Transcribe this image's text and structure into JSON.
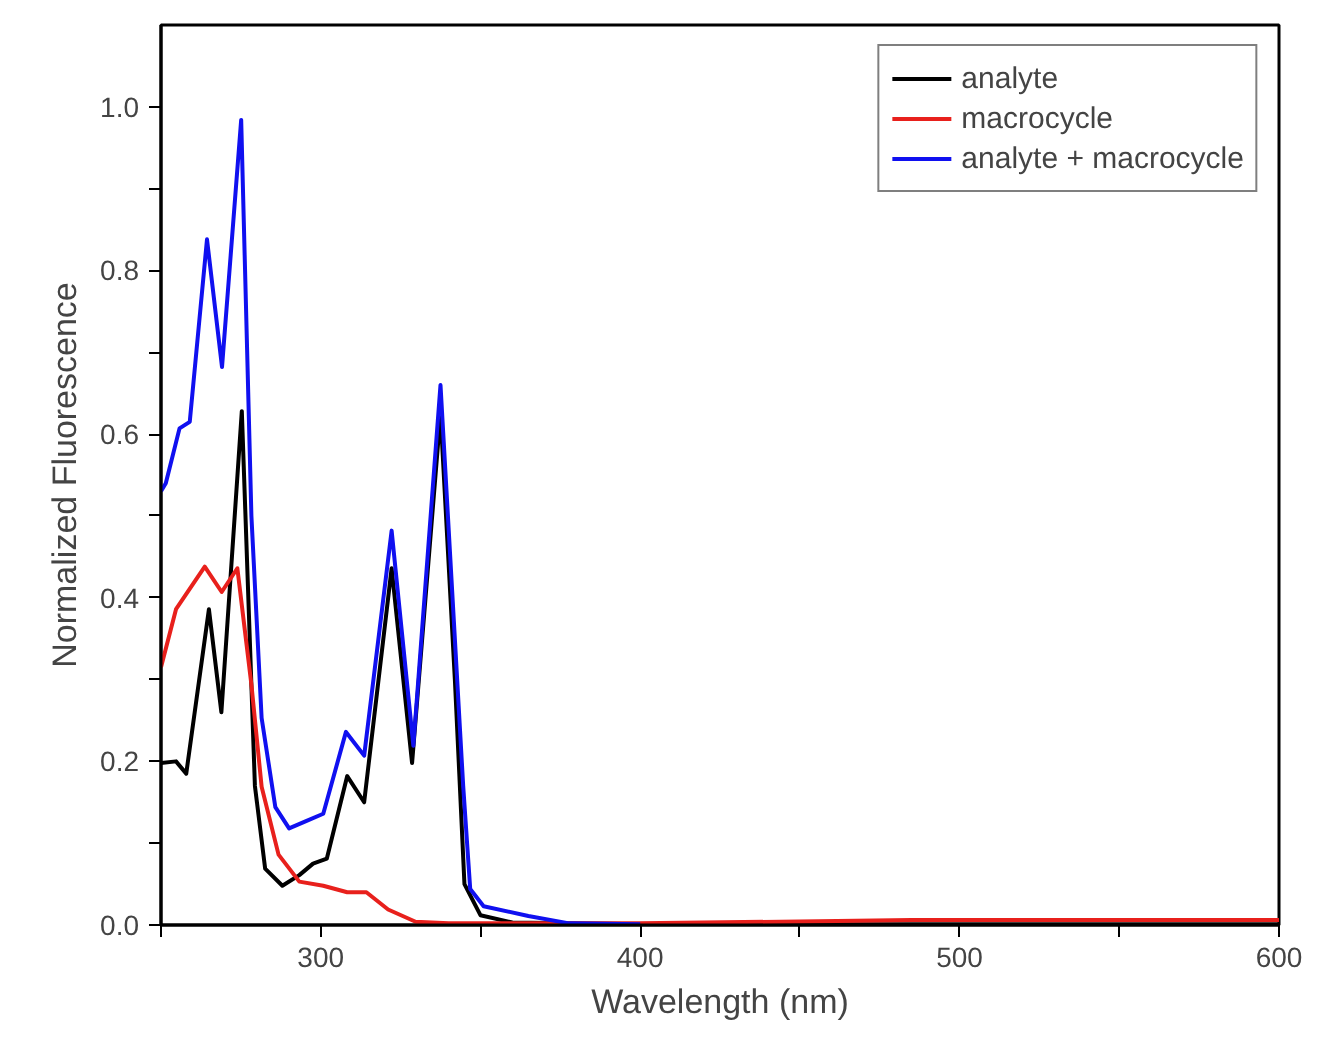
{
  "chart_data": {
    "type": "line",
    "xlabel": "Wavelength (nm)",
    "ylabel": "Normalized Fluorescence",
    "xlim": [
      250,
      600
    ],
    "ylim": [
      0,
      1.1
    ],
    "xticks": [
      {
        "value": 250,
        "label": null
      },
      300,
      {
        "value": 350,
        "label": null
      },
      400,
      {
        "value": 450,
        "label": null
      },
      500,
      {
        "value": 550,
        "label": null
      },
      600
    ],
    "yticks": [
      "0.0",
      {
        "value": 0.1,
        "label": null
      },
      0.2,
      {
        "value": 0.3,
        "label": null
      },
      0.4,
      {
        "value": 0.5,
        "label": null
      },
      0.6,
      {
        "value": 0.7,
        "label": null
      },
      0.8,
      {
        "value": 0.9,
        "label": null
      },
      "1.0"
    ],
    "grid": false,
    "legend": "top right",
    "line_style": "solid",
    "marker": "none",
    "series": [
      {
        "name": "analyte",
        "color": "#000000",
        "x": [
          250,
          254.7,
          257.9,
          265,
          268.9,
          275.3,
          279.4,
          282.6,
          288,
          293.3,
          297.6,
          301.9,
          308.3,
          313.6,
          322.2,
          328.6,
          337.5,
          342,
          345,
          350,
          360,
          400,
          500,
          600
        ],
        "values": [
          0.198,
          0.2,
          0.185,
          0.386,
          0.26,
          0.628,
          0.17,
          0.069,
          0.048,
          0.061,
          0.075,
          0.081,
          0.182,
          0.15,
          0.436,
          0.198,
          0.625,
          0.3,
          0.05,
          0.012,
          0.003,
          0.001,
          0.001,
          0.001
        ]
      },
      {
        "name": "macrocycle",
        "color": "#e8201c",
        "x": [
          250,
          254.7,
          263.7,
          269,
          273.9,
          278.3,
          281.5,
          286.8,
          293.3,
          300.8,
          308.3,
          314.3,
          321.1,
          329.7,
          340,
          400,
          485,
          600
        ],
        "values": [
          0.315,
          0.386,
          0.438,
          0.407,
          0.436,
          0.294,
          0.169,
          0.086,
          0.053,
          0.048,
          0.04,
          0.04,
          0.019,
          0.004,
          0.002,
          0.002,
          0.006,
          0.006
        ]
      },
      {
        "name": "analyte + macrocycle",
        "color": "#1010f0",
        "x": [
          250,
          251.5,
          255.8,
          259,
          264.4,
          269.1,
          275.1,
          278.3,
          281.5,
          285.8,
          290.1,
          295.4,
          300.8,
          307.9,
          313.6,
          322.2,
          329,
          337.5,
          344.6,
          346.8,
          351,
          365,
          377.8,
          400
        ],
        "values": [
          0.53,
          0.54,
          0.607,
          0.615,
          0.838,
          0.682,
          0.984,
          0.5,
          0.253,
          0.144,
          0.118,
          0.127,
          0.136,
          0.236,
          0.207,
          0.482,
          0.219,
          0.66,
          0.17,
          0.044,
          0.023,
          0.011,
          0.002,
          0.001
        ]
      }
    ]
  }
}
